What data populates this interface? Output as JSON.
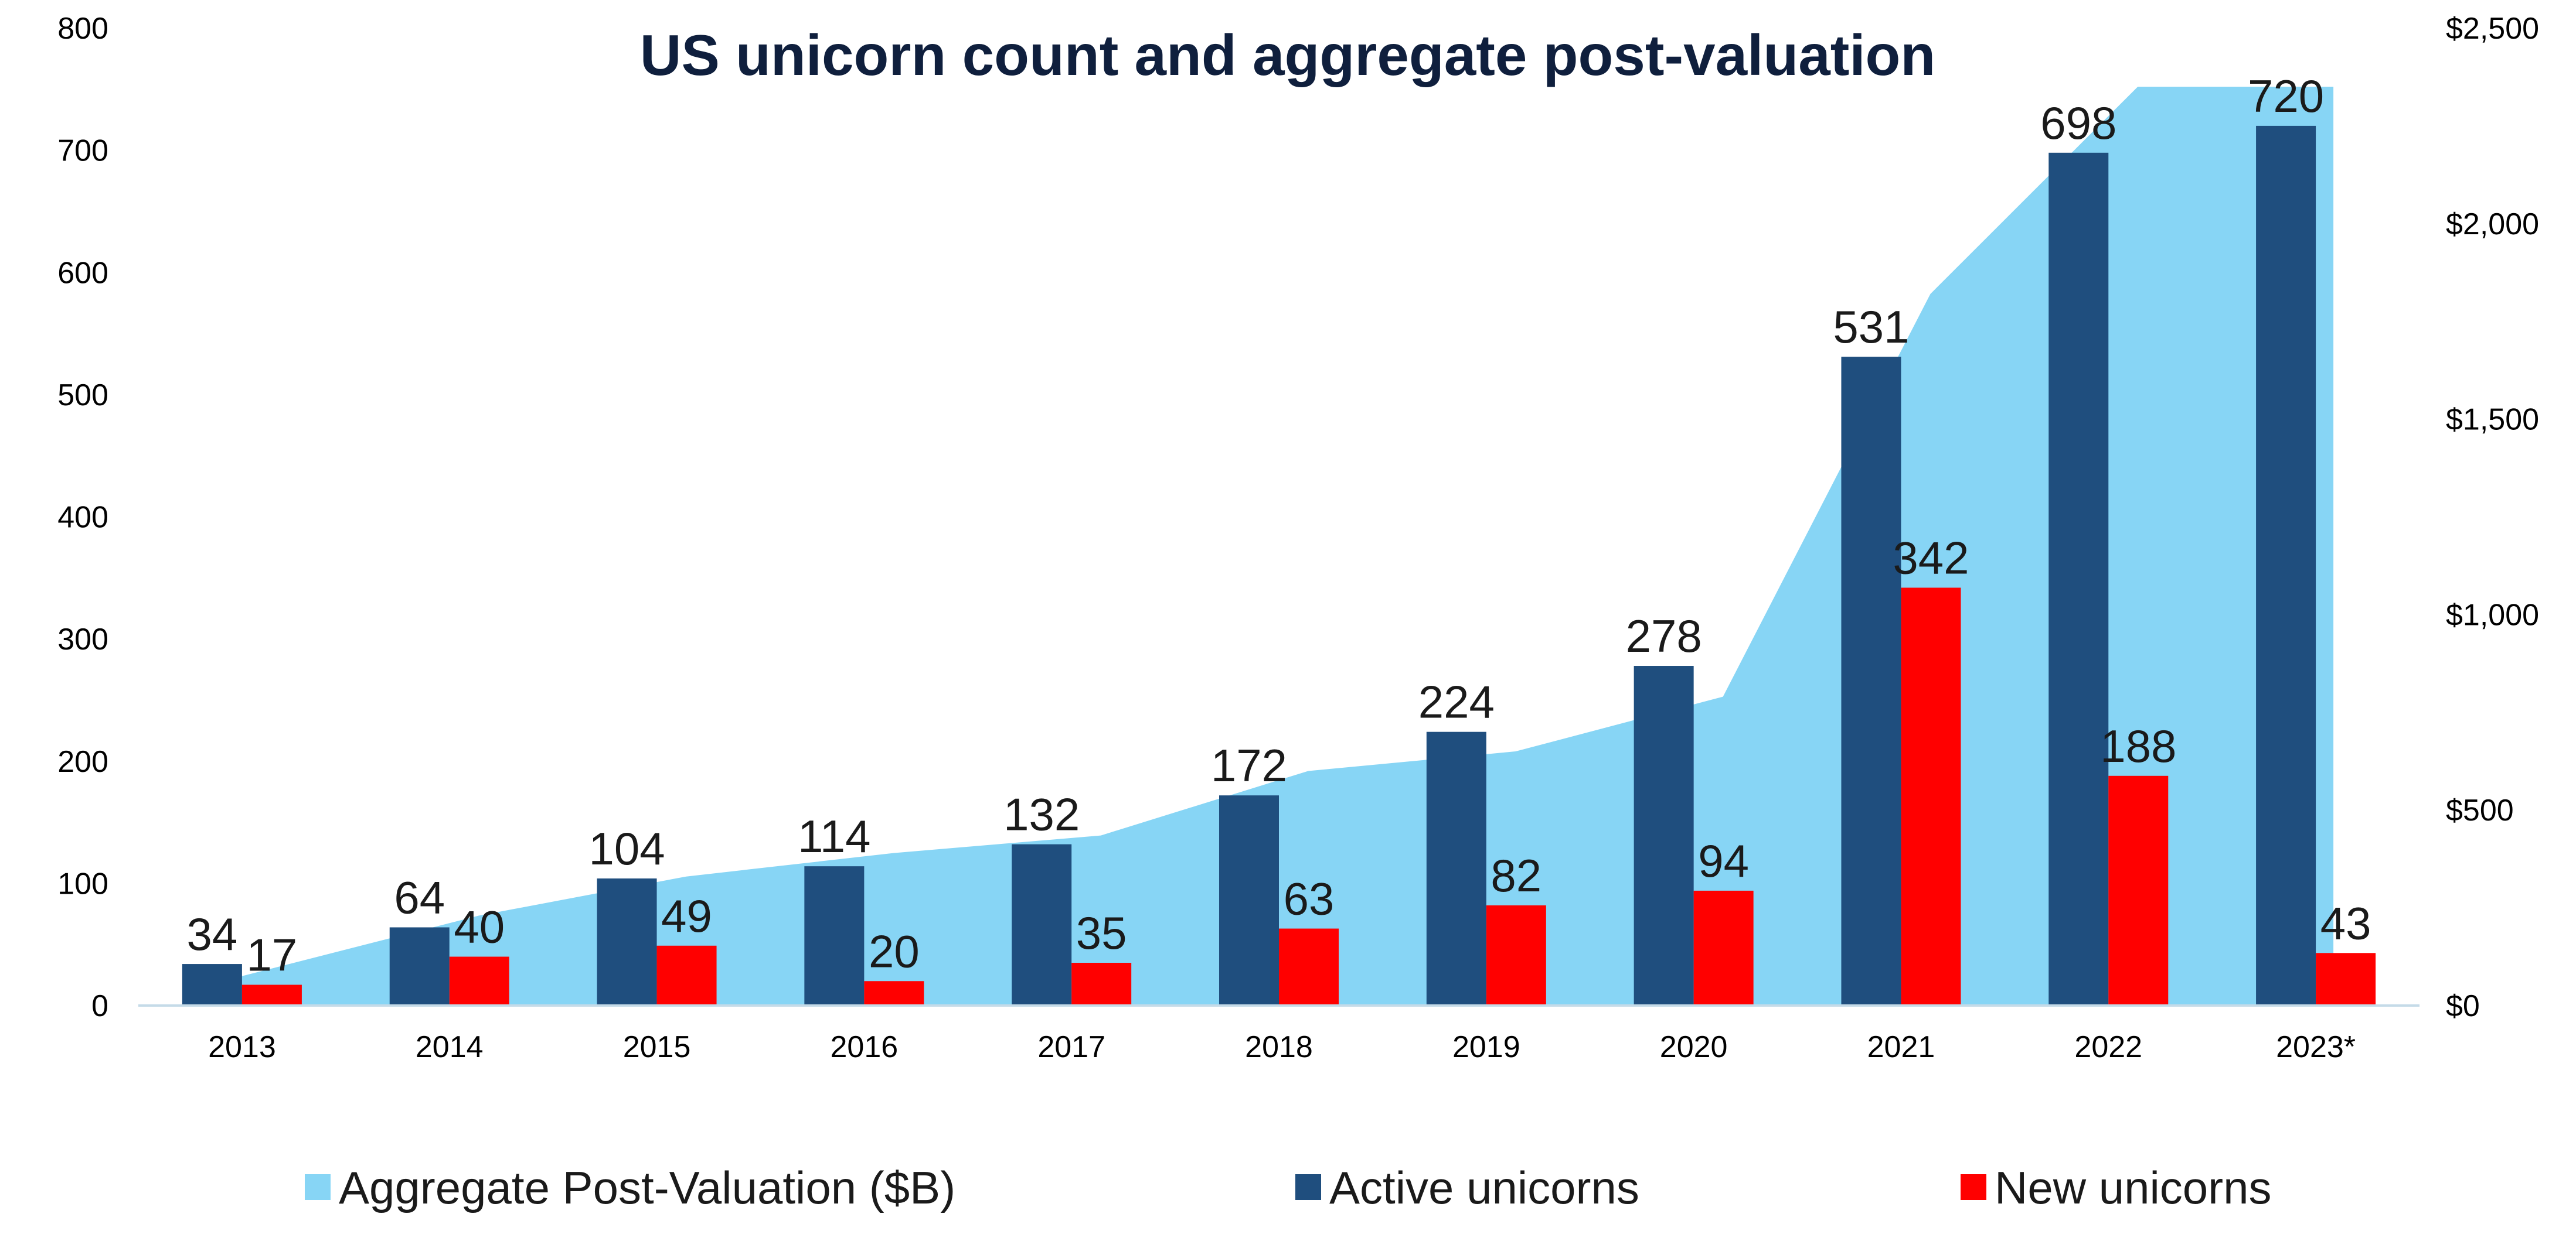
{
  "chart_data": {
    "type": "bar",
    "title": "US unicorn count and aggregate post-valuation",
    "categories": [
      "2013",
      "2014",
      "2015",
      "2016",
      "2017",
      "2018",
      "2019",
      "2020",
      "2021",
      "2022",
      "2023*"
    ],
    "series": [
      {
        "name": "Aggregate Post-Valuation ($B)",
        "type": "area",
        "axis": "right",
        "color": "#87d5f5",
        "values": [
          60,
          230,
          330,
          390,
          435,
          600,
          650,
          790,
          1820,
          2350,
          2350
        ]
      },
      {
        "name": "Active unicorns",
        "type": "bar",
        "axis": "left",
        "color": "#1f4e7e",
        "values": [
          34,
          64,
          104,
          114,
          132,
          172,
          224,
          278,
          531,
          698,
          720
        ],
        "labels": [
          "34",
          "64",
          "104",
          "114",
          "132",
          "172",
          "224",
          "278",
          "531",
          "698",
          "720"
        ]
      },
      {
        "name": "New unicorns",
        "type": "bar",
        "axis": "left",
        "color": "#ff0000",
        "values": [
          17,
          40,
          49,
          20,
          35,
          63,
          82,
          94,
          342,
          188,
          43
        ],
        "labels": [
          "17",
          "40",
          "49",
          "20",
          "35",
          "63",
          "82",
          "94",
          "342",
          "188",
          "43"
        ]
      }
    ],
    "left_axis": {
      "ylim": [
        0,
        800
      ],
      "ticks": [
        0,
        100,
        200,
        300,
        400,
        500,
        600,
        700,
        800
      ],
      "tick_labels": [
        "0",
        "100",
        "200",
        "300",
        "400",
        "500",
        "600",
        "700",
        "800"
      ]
    },
    "right_axis": {
      "ylim": [
        0,
        2500
      ],
      "ticks": [
        0,
        500,
        1000,
        1500,
        2000,
        2500
      ],
      "tick_labels": [
        "$0",
        "$500",
        "$1,000",
        "$1,500",
        "$2,000",
        "$2,500"
      ]
    },
    "grid": false,
    "legend_position": "bottom"
  }
}
